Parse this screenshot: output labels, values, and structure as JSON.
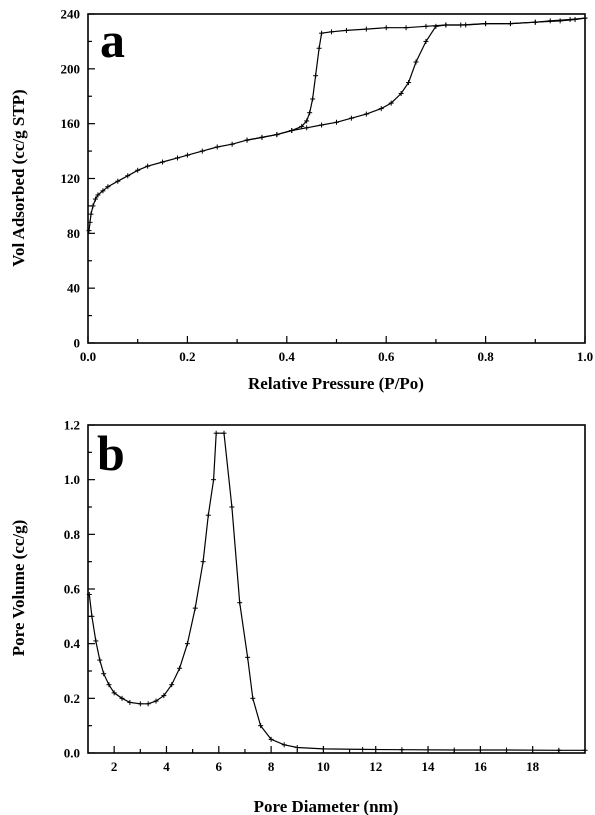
{
  "chart_data": [
    {
      "type": "line",
      "panel_label": "a",
      "xlabel": "Relative Pressure (P/Po)",
      "ylabel": "Vol Adsorbed (cc/g STP)",
      "xlim": [
        0,
        1.0
      ],
      "ylim": [
        0,
        240
      ],
      "xticks": [
        0.0,
        0.2,
        0.4,
        0.6,
        0.8,
        1.0
      ],
      "xtick_labels": [
        "0.0",
        "0.2",
        "0.4",
        "0.6",
        "0.8",
        "1.0"
      ],
      "yticks": [
        0,
        40,
        80,
        120,
        160,
        200,
        240
      ],
      "ytick_labels": [
        "0",
        "40",
        "80",
        "120",
        "160",
        "200",
        "240"
      ],
      "grid": false,
      "series": [
        {
          "points": [
            [
              0.002,
              82
            ],
            [
              0.004,
              88
            ],
            [
              0.006,
              94
            ],
            [
              0.01,
              100
            ],
            [
              0.015,
              105
            ],
            [
              0.02,
              108
            ],
            [
              0.03,
              111
            ],
            [
              0.04,
              114
            ],
            [
              0.06,
              118
            ],
            [
              0.08,
              122
            ],
            [
              0.1,
              126
            ],
            [
              0.12,
              129
            ],
            [
              0.15,
              132
            ],
            [
              0.18,
              135
            ],
            [
              0.2,
              137
            ],
            [
              0.23,
              140
            ],
            [
              0.26,
              143
            ],
            [
              0.29,
              145
            ],
            [
              0.32,
              148
            ],
            [
              0.35,
              150
            ],
            [
              0.38,
              152
            ],
            [
              0.41,
              155
            ],
            [
              0.44,
              157
            ],
            [
              0.47,
              159
            ],
            [
              0.5,
              161
            ],
            [
              0.53,
              164
            ],
            [
              0.56,
              167
            ],
            [
              0.59,
              171
            ],
            [
              0.61,
              175
            ],
            [
              0.63,
              182
            ],
            [
              0.645,
              190
            ],
            [
              0.66,
              205
            ],
            [
              0.68,
              220
            ],
            [
              0.7,
              231
            ],
            [
              0.72,
              232
            ],
            [
              0.76,
              232
            ],
            [
              0.8,
              233
            ],
            [
              0.85,
              233
            ],
            [
              0.9,
              234
            ],
            [
              0.95,
              235
            ],
            [
              0.98,
              236
            ],
            [
              1.0,
              237
            ]
          ]
        },
        {
          "points": [
            [
              1.0,
              237
            ],
            [
              0.97,
              236
            ],
            [
              0.93,
              235
            ],
            [
              0.9,
              234
            ],
            [
              0.85,
              233
            ],
            [
              0.8,
              233
            ],
            [
              0.75,
              232
            ],
            [
              0.72,
              232
            ],
            [
              0.68,
              231
            ],
            [
              0.64,
              230
            ],
            [
              0.6,
              230
            ],
            [
              0.56,
              229
            ],
            [
              0.52,
              228
            ],
            [
              0.49,
              227
            ],
            [
              0.47,
              226
            ],
            [
              0.465,
              215
            ],
            [
              0.458,
              195
            ],
            [
              0.452,
              178
            ],
            [
              0.446,
              168
            ],
            [
              0.44,
              162
            ],
            [
              0.43,
              158
            ],
            [
              0.41,
              155
            ],
            [
              0.38,
              152
            ],
            [
              0.35,
              150
            ],
            [
              0.32,
              148
            ]
          ]
        }
      ]
    },
    {
      "type": "line",
      "panel_label": "b",
      "xlabel": "Pore Diameter (nm)",
      "ylabel": "Pore Volume (cc/g)",
      "xlim": [
        1,
        20
      ],
      "ylim": [
        0,
        1.2
      ],
      "xticks": [
        2,
        4,
        6,
        8,
        10,
        12,
        14,
        16,
        18
      ],
      "xtick_labels": [
        "2",
        "4",
        "6",
        "8",
        "10",
        "12",
        "14",
        "16",
        "18"
      ],
      "yticks": [
        0.0,
        0.2,
        0.4,
        0.6,
        0.8,
        1.0,
        1.2
      ],
      "ytick_labels": [
        "0.0",
        "0.2",
        "0.4",
        "0.6",
        "0.8",
        "1.0",
        "1.2"
      ],
      "grid": false,
      "series": [
        {
          "points": [
            [
              1.05,
              0.58
            ],
            [
              1.15,
              0.5
            ],
            [
              1.3,
              0.41
            ],
            [
              1.45,
              0.34
            ],
            [
              1.6,
              0.29
            ],
            [
              1.8,
              0.25
            ],
            [
              2.0,
              0.22
            ],
            [
              2.3,
              0.2
            ],
            [
              2.6,
              0.185
            ],
            [
              3.0,
              0.18
            ],
            [
              3.3,
              0.18
            ],
            [
              3.6,
              0.19
            ],
            [
              3.9,
              0.21
            ],
            [
              4.2,
              0.25
            ],
            [
              4.5,
              0.31
            ],
            [
              4.8,
              0.4
            ],
            [
              5.1,
              0.53
            ],
            [
              5.4,
              0.7
            ],
            [
              5.6,
              0.87
            ],
            [
              5.8,
              1.0
            ],
            [
              5.9,
              1.17
            ],
            [
              6.2,
              1.17
            ],
            [
              6.5,
              0.9
            ],
            [
              6.8,
              0.55
            ],
            [
              7.1,
              0.35
            ],
            [
              7.3,
              0.2
            ],
            [
              7.6,
              0.1
            ],
            [
              8.0,
              0.05
            ],
            [
              8.5,
              0.03
            ],
            [
              9.0,
              0.02
            ],
            [
              10.0,
              0.015
            ],
            [
              11.5,
              0.013
            ],
            [
              13.0,
              0.012
            ],
            [
              15.0,
              0.011
            ],
            [
              17.0,
              0.011
            ],
            [
              19.0,
              0.01
            ],
            [
              20.0,
              0.01
            ]
          ]
        }
      ]
    }
  ]
}
